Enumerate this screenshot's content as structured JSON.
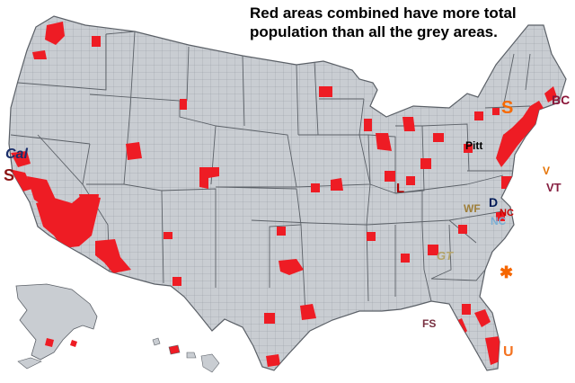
{
  "caption": {
    "line1": "Red areas combined have more total",
    "line2": "population than all the grey areas."
  },
  "colors": {
    "grey_area": "#c9cdd2",
    "county_line": "#8e949b",
    "state_line": "#5b6067",
    "red_area": "#ee1c24"
  },
  "logos": [
    {
      "name": "cal-logo",
      "text": "Cal",
      "color": "#1b2f6b"
    },
    {
      "name": "stanford-logo",
      "text": "S",
      "color": "#8c1515"
    },
    {
      "name": "syracuse-logo",
      "text": "S",
      "color": "#f76900"
    },
    {
      "name": "boston-college-logo",
      "text": "BC",
      "color": "#8a1538"
    },
    {
      "name": "pitt-logo",
      "text": "Pitt",
      "color": "#000000"
    },
    {
      "name": "virginia-logo",
      "text": "V",
      "color": "#e57200"
    },
    {
      "name": "virginia-tech-logo",
      "text": "VT",
      "color": "#861f41"
    },
    {
      "name": "louisville-logo",
      "text": "L",
      "color": "#ad0000"
    },
    {
      "name": "wake-forest-logo",
      "text": "WF",
      "color": "#9e7e38"
    },
    {
      "name": "nc-state-logo",
      "text": "NC",
      "color": "#cc0000"
    },
    {
      "name": "duke-logo",
      "text": "D",
      "color": "#001a57"
    },
    {
      "name": "unc-logo",
      "text": "NC",
      "color": "#7bafd4"
    },
    {
      "name": "georgia-tech-logo",
      "text": "GT",
      "color": "#b3a369"
    },
    {
      "name": "clemson-logo",
      "text": "✱",
      "color": "#f56600"
    },
    {
      "name": "florida-state-logo",
      "text": "FS",
      "color": "#782f40"
    },
    {
      "name": "miami-logo",
      "text": "U",
      "color": "#f47321"
    }
  ]
}
